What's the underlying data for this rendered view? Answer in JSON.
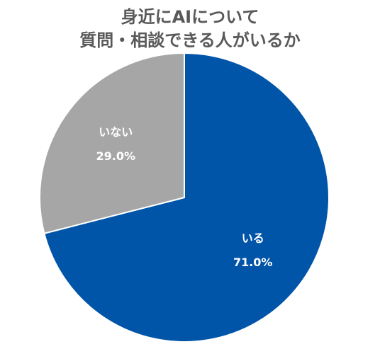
{
  "chart_data": {
    "type": "pie",
    "title": [
      "身近にAIについて",
      "質問・相談できる人がいるか"
    ],
    "slices": [
      {
        "label": "いる",
        "value": 71.0,
        "value_label": "71.0%",
        "color": "#0055A8"
      },
      {
        "label": "いない",
        "value": 29.0,
        "value_label": "29.0%",
        "color": "#A6A6A6"
      }
    ],
    "start_angle": "12 o'clock",
    "direction": "clockwise",
    "legend": "none",
    "slice_border_color": "#ffffff"
  }
}
